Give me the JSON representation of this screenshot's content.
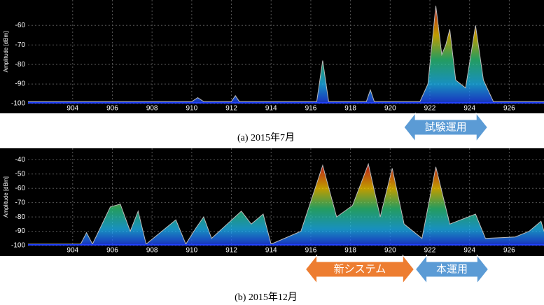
{
  "chart_data": [
    {
      "type": "line",
      "ylabel": "Amplitude [dBm]",
      "caption": "(a) 2015年7月",
      "xlim": [
        901.75,
        927.75
      ],
      "ylim": [
        -100,
        -47
      ],
      "xticks": [
        904,
        906,
        908,
        910,
        912,
        914,
        916,
        918,
        920,
        922,
        924,
        926
      ],
      "yticks": [
        -100,
        -90,
        -80,
        -70,
        -60
      ],
      "grid": true,
      "x": [
        901.75,
        904,
        906,
        908,
        910,
        910.3,
        910.6,
        912,
        912.2,
        912.4,
        916.3,
        916.6,
        916.9,
        918.8,
        919,
        919.2,
        921.5,
        921.9,
        922.3,
        922.6,
        922.8,
        923.0,
        923.3,
        923.8,
        924.3,
        924.7,
        925.2,
        927.75
      ],
      "series": [
        {
          "color": "#bbbbbb",
          "values": [
            -99,
            -99,
            -99,
            -99,
            -99,
            -97,
            -99,
            -99,
            -96,
            -99,
            -99,
            -78,
            -99,
            -99,
            -93,
            -99,
            -99,
            -90,
            -50,
            -75,
            -70,
            -62,
            -88,
            -92,
            -60,
            -88,
            -99,
            -99
          ]
        }
      ],
      "annotations": [
        {
          "text": "試験運用",
          "color": "#5b9bd5",
          "x": [
            920.7,
            924.9
          ]
        }
      ]
    },
    {
      "type": "line",
      "ylabel": "Amplitude [dBm]",
      "caption": "(b) 2015年12月",
      "xlim": [
        901.75,
        927.75
      ],
      "ylim": [
        -100,
        -32
      ],
      "xticks": [
        904,
        906,
        908,
        910,
        912,
        914,
        916,
        918,
        920,
        922,
        924,
        926
      ],
      "yticks": [
        -100,
        -90,
        -80,
        -70,
        -60,
        -50,
        -40
      ],
      "grid": true,
      "x": [
        901.75,
        904.4,
        904.7,
        905,
        905.9,
        906.4,
        906.9,
        907.3,
        907.7,
        909.2,
        909.7,
        910.2,
        910.6,
        911,
        912.5,
        913,
        913.6,
        914,
        915.5,
        916.6,
        917.3,
        918.1,
        918.9,
        919.5,
        920.1,
        920.7,
        921.6,
        922.3,
        923,
        924.3,
        924.8,
        926.3,
        927,
        927.6,
        927.75
      ],
      "series": [
        {
          "color": "#bbbbbb",
          "values": [
            -99,
            -99,
            -91,
            -99,
            -73,
            -71,
            -90,
            -76,
            -99,
            -82,
            -99,
            -88,
            -80,
            -95,
            -76,
            -85,
            -78,
            -99,
            -90,
            -44,
            -80,
            -72,
            -43,
            -80,
            -46,
            -85,
            -95,
            -45,
            -85,
            -78,
            -95,
            -94,
            -90,
            -83,
            -90
          ]
        }
      ],
      "annotations": [
        {
          "text": "新システム",
          "color": "#ed7d31",
          "x": [
            915.74,
            921.2
          ]
        },
        {
          "text": "本運用",
          "color": "#5b9bd5",
          "x": [
            921.28,
            924.94
          ]
        }
      ]
    }
  ]
}
